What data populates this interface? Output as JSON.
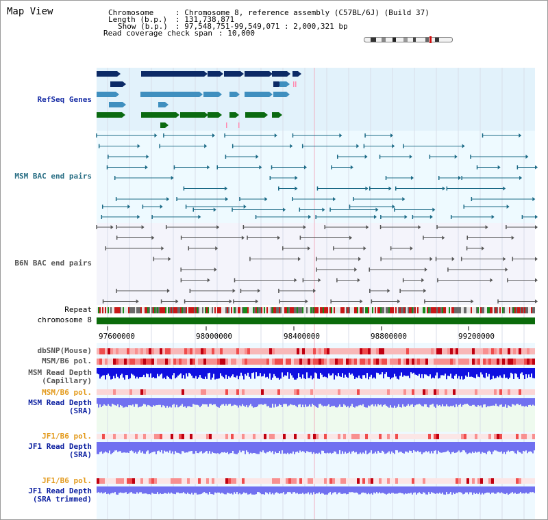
{
  "title": "Map View",
  "header": {
    "chromosome_key": "Chromosome",
    "chromosome_val": ": Chromosome 8, reference assembly (C57BL/6J) (Build 37)",
    "length_key": "Length (b.p.)",
    "length_val": ": 131,738,871",
    "show_key": "Show (b.p.)",
    "show_val": ": 97,548,751-99,549,071 : 2,000,321 bp",
    "coverage_key": "Read coverage check span",
    "coverage_val": ": 10,000"
  },
  "tracks": {
    "refseq": "RefSeq Genes",
    "msm_bac": "MSM BAC end pairs",
    "b6n_bac": "B6N BAC end pairs",
    "repeat": "Repeat",
    "chromosome": "chromosome 8",
    "dbsnp": "dbSNP(Mouse)",
    "msm_pol": "MSM/B6 pol.",
    "msm_depth_cap_1": "MSM Read Depth",
    "msm_depth_cap_2": "(Capillary)",
    "msm_pol2": "MSM/B6 pol.",
    "msm_depth_sra_1": "MSM Read Depth",
    "msm_depth_sra_2": "(SRA)",
    "jf1_pol": "JF1/B6 pol.",
    "jf1_depth_1": "JF1 Read Depth",
    "jf1_depth_2": "(SRA)",
    "jf1_pol2": "JF1/B6 pol.",
    "jf1_trim_1": "JF1 Read Depth",
    "jf1_trim_2": "(SRA trimmed)"
  },
  "axis": {
    "ticks": [
      "97600000",
      "98000000",
      "98400000",
      "98800000",
      "99200000"
    ]
  },
  "colors": {
    "refseq_dark": "#0c2a66",
    "refseq_mid": "#3f8fbf",
    "refseq_green": "#0a6a10",
    "msm_bac": "#1b6a86",
    "b6n_bac": "#555555",
    "chromosome": "#0b6b0b",
    "depth": "#1010e0",
    "depth_light": "#7070f0",
    "pol_red": "#e83a3a"
  }
}
